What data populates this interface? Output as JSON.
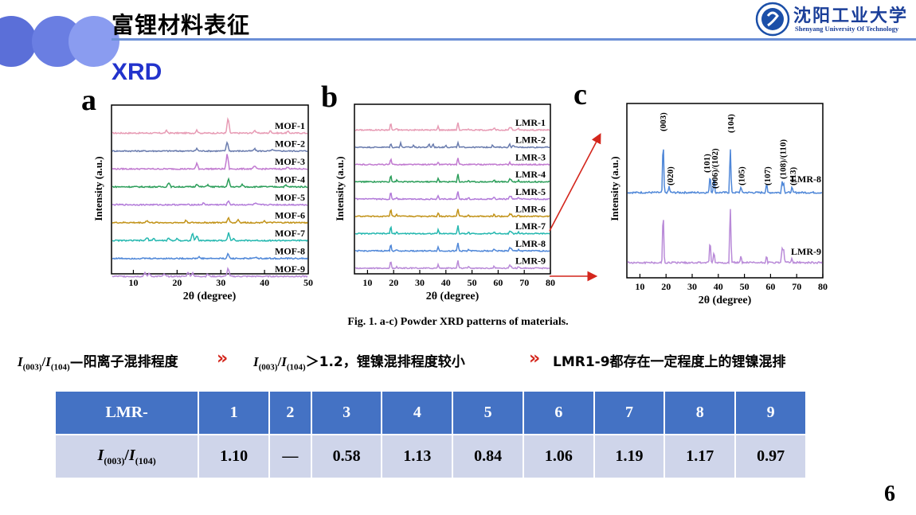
{
  "header": {
    "title": "富锂材料表征",
    "logo_text": "沈阳工业大学",
    "logo_subtext": "Shenyang University Of Technology"
  },
  "section_title": "XRD",
  "panels": {
    "a": {
      "letter": "a",
      "xlabel": "2θ (degree)",
      "ylabel": "Intensity (a.u.)",
      "xticks": [
        "10",
        "20",
        "30",
        "40",
        "50"
      ],
      "series": [
        "MOF-1",
        "MOF-2",
        "MOF-3",
        "MOF-4",
        "MOF-5",
        "MOF-6",
        "MOF-7",
        "MOF-8",
        "MOF-9"
      ]
    },
    "b": {
      "letter": "b",
      "xlabel": "2θ (degree)",
      "ylabel": "Intensity (a.u.)",
      "xticks": [
        "10",
        "20",
        "30",
        "40",
        "50",
        "60",
        "70",
        "80"
      ],
      "series": [
        "LMR-1",
        "LMR-2",
        "LMR-3",
        "LMR-4",
        "LMR-5",
        "LMR-6",
        "LMR-7",
        "LMR-8",
        "LMR-9"
      ]
    },
    "c": {
      "letter": "c",
      "xlabel": "2θ (degree)",
      "ylabel": "Intensity (a.u.)",
      "xticks": [
        "10",
        "20",
        "30",
        "40",
        "50",
        "60",
        "70",
        "80"
      ],
      "series": [
        "LMR-8",
        "LMR-9"
      ],
      "peak_labels": [
        "(003)",
        "(020)",
        "(101)",
        "(006)/(102)",
        "(104)",
        "(105)",
        "(107)",
        "(108)/(110)",
        "(113)"
      ]
    }
  },
  "caption": "Fig. 1. a-c) Powder XRD patterns of materials.",
  "text_row": {
    "t1_mid": "—阳离子混排程度",
    "t2_mid": "＞1.2，锂镍混排程度较小",
    "t3": "LMR1-9都存在一定程度上的锂镍混排",
    "arrow": "»",
    "i003_sub": "(003)",
    "i104_sub": "(104)"
  },
  "table": {
    "header": [
      "LMR-",
      "1",
      "2",
      "3",
      "4",
      "5",
      "6",
      "7",
      "8",
      "9"
    ],
    "row_values": [
      "1.10",
      "—",
      "0.58",
      "1.13",
      "0.84",
      "1.06",
      "1.19",
      "1.17",
      "0.97"
    ]
  },
  "page_number": "6",
  "colors": {
    "accent_blue": "#4472c4",
    "table_row": "#cfd5ea",
    "header_line": "#6b8fd6",
    "arrow_red": "#d4261c",
    "title_blue": "#2233cc"
  },
  "chart_data": [
    {
      "type": "line",
      "title": "",
      "xlabel": "2θ (degree)",
      "ylabel": "Intensity (a.u.)",
      "xlim": [
        5,
        50
      ],
      "series_names": [
        "MOF-1",
        "MOF-2",
        "MOF-3",
        "MOF-4",
        "MOF-5",
        "MOF-6",
        "MOF-7",
        "MOF-8",
        "MOF-9"
      ],
      "series_colors": [
        "#e79bb4",
        "#6a7cae",
        "#c17ad0",
        "#2c9e5a",
        "#b27ad9",
        "#c29319",
        "#26b8b0",
        "#4f87d8",
        "#b98ad8"
      ],
      "main_peaks_2theta": [
        31.7,
        31.5,
        31.5,
        31.8,
        31.8,
        31.8,
        31.8,
        31.7,
        31.7
      ]
    },
    {
      "type": "line",
      "title": "",
      "xlabel": "2θ (degree)",
      "ylabel": "Intensity (a.u.)",
      "xlim": [
        5,
        80
      ],
      "series_names": [
        "LMR-1",
        "LMR-2",
        "LMR-3",
        "LMR-4",
        "LMR-5",
        "LMR-6",
        "LMR-7",
        "LMR-8",
        "LMR-9"
      ],
      "series_colors": [
        "#e79bb4",
        "#6a7cae",
        "#c17ad0",
        "#2c9e5a",
        "#b27ad9",
        "#c29319",
        "#26b8b0",
        "#4f87d8",
        "#b98ad8"
      ],
      "main_peaks_2theta": [
        18.7,
        44.6
      ]
    },
    {
      "type": "line",
      "title": "",
      "xlabel": "2θ (degree)",
      "ylabel": "Intensity (a.u.)",
      "xlim": [
        5,
        80
      ],
      "series_names": [
        "LMR-8",
        "LMR-9"
      ],
      "series_colors": [
        "#4f87d8",
        "#b98ad8"
      ],
      "peaks_2theta": [
        18.7,
        21.0,
        36.8,
        38.3,
        44.6,
        48.7,
        58.6,
        64.6,
        68.4
      ]
    }
  ]
}
